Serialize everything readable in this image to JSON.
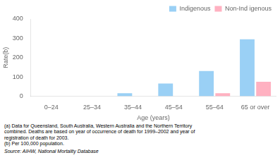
{
  "chart_data": {
    "type": "bar",
    "categories": [
      "0–24",
      "25–34",
      "35–44",
      "45–54",
      "55–64",
      "65 or over"
    ],
    "series": [
      {
        "name": "Indigenous",
        "values": [
          0,
          0,
          15,
          65,
          130,
          295
        ]
      },
      {
        "name": "Non-Ind igenous",
        "values": [
          0,
          0,
          0,
          0,
          15,
          75
        ]
      }
    ],
    "xlabel": "Age (years)",
    "ylabel": "Rate(b)",
    "ylim": [
      0,
      400
    ],
    "yticks": [
      0,
      100,
      200,
      300,
      400
    ],
    "grid": false,
    "legend": "upper right",
    "annotations": [
      "(a) Data for Queensland, South Australia, Western Australia and the Northern Territory\ncombined. Deaths are based on year of occurrence of death for 1999–2002 and year of\nregistration of death for 2003.\n(b) Per 100,000 population.",
      "Source: AIHW, National Mortality Database"
    ]
  }
}
